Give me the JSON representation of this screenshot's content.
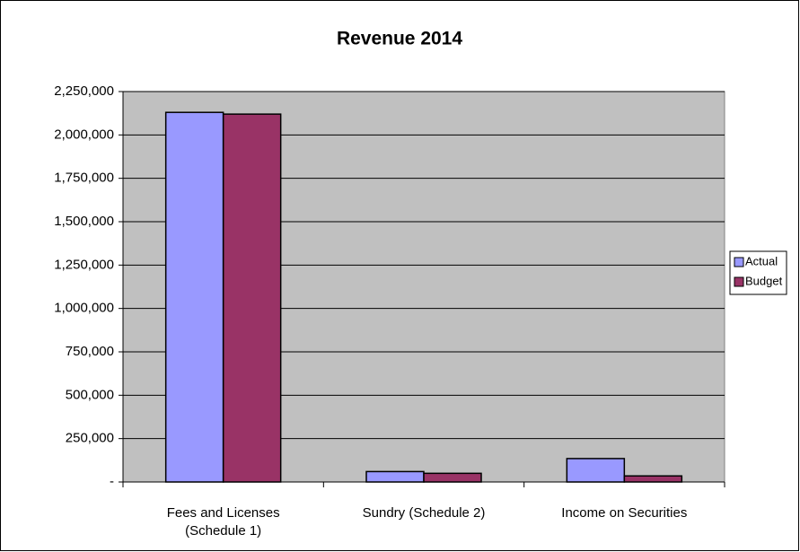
{
  "chart_data": {
    "type": "bar",
    "title": "Revenue 2014",
    "categories": [
      "Fees and Licenses (Schedule 1)",
      "Sundry (Schedule 2)",
      "Income on Securities"
    ],
    "series": [
      {
        "name": "Actual",
        "color": "#9999ff",
        "values": [
          2130000,
          60000,
          135000
        ]
      },
      {
        "name": "Budget",
        "color": "#993366",
        "values": [
          2120000,
          50000,
          35000
        ]
      }
    ],
    "ylim": [
      0,
      2250000
    ],
    "yticks": [
      {
        "value": 0,
        "label": "-"
      },
      {
        "value": 250000,
        "label": "250,000"
      },
      {
        "value": 500000,
        "label": "500,000"
      },
      {
        "value": 750000,
        "label": "750,000"
      },
      {
        "value": 1000000,
        "label": "1,000,000"
      },
      {
        "value": 1250000,
        "label": "1,250,000"
      },
      {
        "value": 1500000,
        "label": "1,500,000"
      },
      {
        "value": 1750000,
        "label": "1,750,000"
      },
      {
        "value": 2000000,
        "label": "2,000,000"
      },
      {
        "value": 2250000,
        "label": "2,250,000"
      }
    ],
    "grid": true,
    "legend": "right"
  }
}
